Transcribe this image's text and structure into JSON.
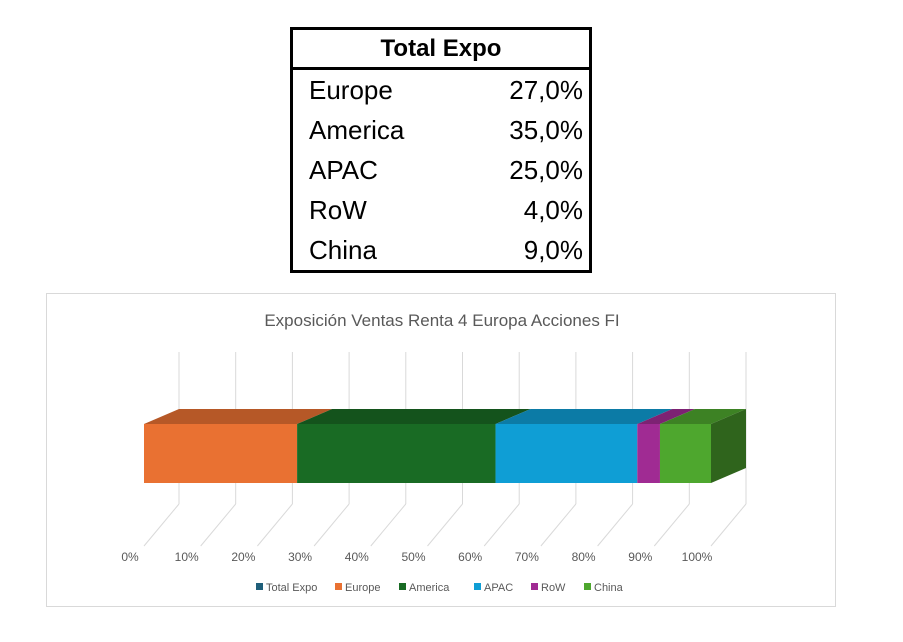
{
  "table": {
    "header": "Total Expo",
    "rows": [
      {
        "label": "Europe",
        "value": "27,0%"
      },
      {
        "label": "America",
        "value": "35,0%"
      },
      {
        "label": "APAC",
        "value": "25,0%"
      },
      {
        "label": "RoW",
        "value": "4,0%"
      },
      {
        "label": "China",
        "value": "9,0%"
      }
    ]
  },
  "chart_data": {
    "type": "bar",
    "orientation": "horizontal",
    "stacked": "100%",
    "style": "3d",
    "title": "Exposición Ventas Renta 4 Europa Acciones FI",
    "categories": [
      "Total Expo"
    ],
    "series": [
      {
        "name": "Total Expo",
        "values": [
          0
        ],
        "color": "#1F5F7A"
      },
      {
        "name": "Europe",
        "values": [
          27.0
        ],
        "color": "#E97132"
      },
      {
        "name": "America",
        "values": [
          35.0
        ],
        "color": "#196B24"
      },
      {
        "name": "APAC",
        "values": [
          25.0
        ],
        "color": "#0F9ED5"
      },
      {
        "name": "RoW",
        "values": [
          4.0
        ],
        "color": "#A02B93"
      },
      {
        "name": "China",
        "values": [
          9.0
        ],
        "color": "#4EA72E"
      }
    ],
    "x_ticks": [
      "0%",
      "10%",
      "20%",
      "30%",
      "40%",
      "50%",
      "60%",
      "70%",
      "80%",
      "90%",
      "100%"
    ],
    "xlim": [
      0,
      100
    ],
    "grid": true,
    "legend": "bottom"
  }
}
